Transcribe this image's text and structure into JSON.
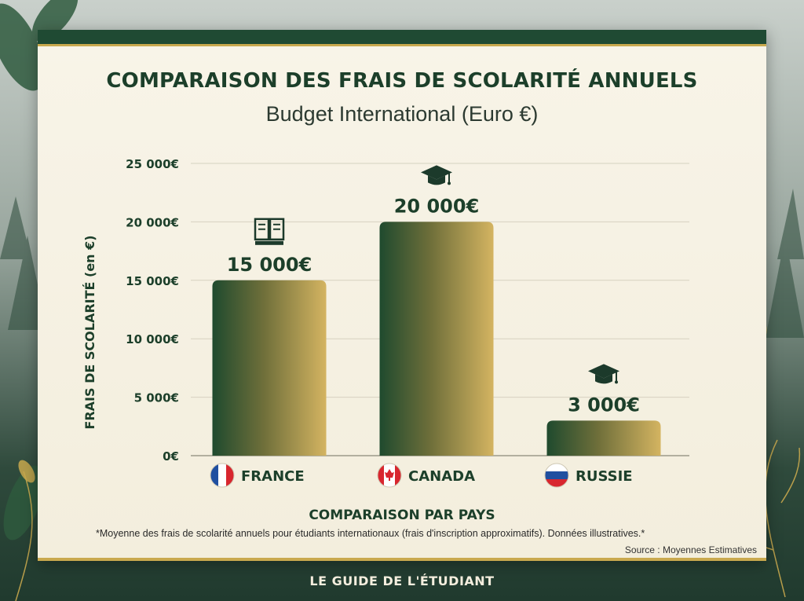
{
  "colors": {
    "dark_green": "#1f4a33",
    "gold": "#c9a94e",
    "card_bg": "#f6f1e3",
    "text_dark": "#1c3f2a"
  },
  "footer": "LE GUIDE DE L'ÉTUDIANT",
  "chart_data": {
    "type": "bar",
    "title": "COMPARAISON DES FRAIS DE SCOLARITÉ ANNUELS",
    "subtitle": "Budget International (Euro €)",
    "xlabel": "COMPARAISON PAR PAYS",
    "ylabel": "FRAIS DE SCOLARITÉ (en €)",
    "ylim": [
      0,
      25000
    ],
    "yticks": [
      0,
      5000,
      10000,
      15000,
      20000,
      25000
    ],
    "ytick_labels": [
      "0€",
      "5 000€",
      "10 000€",
      "15 000€",
      "20 000€",
      "25 000€"
    ],
    "grid": true,
    "categories": [
      "FRANCE",
      "CANADA",
      "RUSSIE"
    ],
    "values": [
      15000,
      20000,
      3000
    ],
    "value_labels": [
      "15 000€",
      "20 000€",
      "3 000€"
    ],
    "bar_icons": [
      "book-icon",
      "graduation-cap-icon",
      "graduation-cap-icon"
    ],
    "flag_icons": [
      "france-flag-icon",
      "canada-flag-icon",
      "russia-flag-icon"
    ],
    "note": "*Moyenne des frais de scolarité annuels pour étudiants internationaux (frais d'inscription approximatifs). Données illustratives.*",
    "source": "Source : Moyennes Estimatives"
  }
}
